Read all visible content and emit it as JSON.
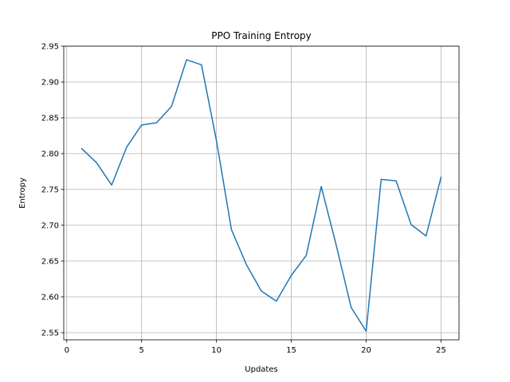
{
  "chart_data": {
    "type": "line",
    "title": "PPO Training Entropy",
    "xlabel": "Updates",
    "ylabel": "Entropy",
    "xlim": [
      -0.2,
      26.2
    ],
    "ylim": [
      2.54,
      2.95
    ],
    "grid": true,
    "color": "#1f77b4",
    "xticks": [
      0,
      5,
      10,
      15,
      20,
      25
    ],
    "yticks": [
      2.55,
      2.6,
      2.65,
      2.7,
      2.75,
      2.8,
      2.85,
      2.9,
      2.95
    ],
    "series": [
      {
        "x": [
          1,
          2,
          3,
          4,
          5,
          6,
          7,
          8,
          9,
          10,
          11,
          12,
          13,
          14,
          15,
          16,
          17,
          18,
          19,
          20,
          21,
          22,
          23,
          24,
          25
        ],
        "values": [
          2.807,
          2.787,
          2.756,
          2.809,
          2.84,
          2.843,
          2.866,
          2.931,
          2.924,
          2.818,
          2.694,
          2.645,
          2.608,
          2.594,
          2.63,
          2.658,
          2.754,
          2.672,
          2.585,
          2.552,
          2.764,
          2.762,
          2.701,
          2.685,
          2.767
        ]
      }
    ]
  }
}
